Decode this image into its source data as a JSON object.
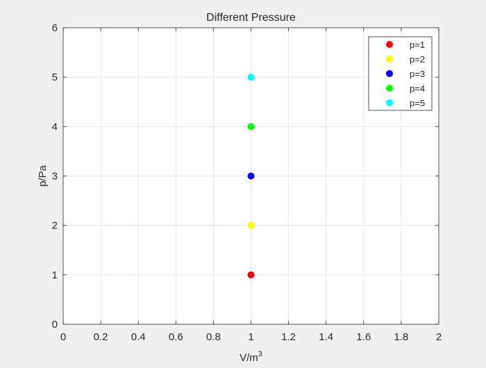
{
  "chart_data": {
    "type": "scatter",
    "title": "Different Pressure",
    "xlabel_base": "V/m",
    "xlabel_sup": "3",
    "ylabel": "p/Pa",
    "xlim": [
      0,
      2
    ],
    "ylim": [
      0,
      6
    ],
    "xticks": [
      "0",
      "0.2",
      "0.4",
      "0.6",
      "0.8",
      "1",
      "1.2",
      "1.4",
      "1.6",
      "1.8",
      "2"
    ],
    "yticks": [
      "0",
      "1",
      "2",
      "3",
      "4",
      "5",
      "6"
    ],
    "grid": true,
    "legend_position": "top-right",
    "series": [
      {
        "name": "p=1",
        "color": "#ff0000",
        "points": [
          {
            "x": 1,
            "y": 1
          }
        ]
      },
      {
        "name": "p=2",
        "color": "#ffff00",
        "points": [
          {
            "x": 1,
            "y": 2
          }
        ]
      },
      {
        "name": "p=3",
        "color": "#0000ff",
        "points": [
          {
            "x": 1,
            "y": 3
          }
        ]
      },
      {
        "name": "p=4",
        "color": "#00ff00",
        "points": [
          {
            "x": 1,
            "y": 4
          }
        ]
      },
      {
        "name": "p=5",
        "color": "#00ffff",
        "points": [
          {
            "x": 1,
            "y": 5
          }
        ]
      }
    ]
  }
}
